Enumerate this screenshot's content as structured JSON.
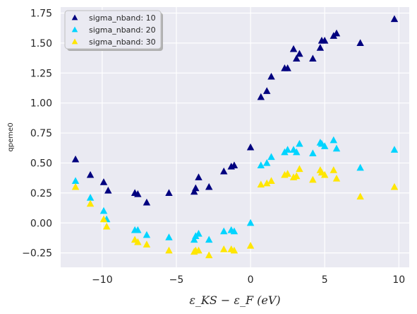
{
  "chart_data": {
    "type": "scatter",
    "marker": "triangle-up",
    "xlabel": "ε_KS − ε_F (eV)",
    "ylabel": "qpeme0",
    "xlim": [
      -12.8,
      10.7
    ],
    "ylim": [
      -0.37,
      1.8
    ],
    "xticks": [
      -10,
      -5,
      0,
      5,
      10
    ],
    "xtick_labels": [
      "−10",
      "−5",
      "0",
      "5",
      "10"
    ],
    "yticks": [
      -0.25,
      0,
      0.25,
      0.5,
      0.75,
      1.0,
      1.25,
      1.5,
      1.75
    ],
    "ytick_labels": [
      "−0.25",
      "0.00",
      "0.25",
      "0.50",
      "0.75",
      "1.00",
      "1.25",
      "1.50",
      "1.75"
    ],
    "grid": true,
    "background": "#eaeaf2",
    "legend_position": "top-left",
    "series": [
      {
        "name": "sigma_nband: 10",
        "color": "#00007f",
        "points": [
          [
            -11.8,
            0.53
          ],
          [
            -10.8,
            0.4
          ],
          [
            -9.9,
            0.34
          ],
          [
            -9.6,
            0.27
          ],
          [
            -7.8,
            0.25
          ],
          [
            -7.6,
            0.24
          ],
          [
            -7.0,
            0.17
          ],
          [
            -5.5,
            0.25
          ],
          [
            -3.8,
            0.26
          ],
          [
            -3.7,
            0.29
          ],
          [
            -3.5,
            0.38
          ],
          [
            -2.8,
            0.3
          ],
          [
            -1.8,
            0.43
          ],
          [
            -1.3,
            0.47
          ],
          [
            -1.1,
            0.48
          ],
          [
            0.0,
            0.63
          ],
          [
            0.7,
            1.05
          ],
          [
            1.1,
            1.1
          ],
          [
            1.4,
            1.22
          ],
          [
            2.3,
            1.29
          ],
          [
            2.5,
            1.29
          ],
          [
            2.9,
            1.45
          ],
          [
            3.1,
            1.37
          ],
          [
            3.3,
            1.41
          ],
          [
            4.2,
            1.37
          ],
          [
            4.7,
            1.46
          ],
          [
            4.8,
            1.52
          ],
          [
            5.0,
            1.52
          ],
          [
            5.6,
            1.56
          ],
          [
            5.8,
            1.58
          ],
          [
            7.4,
            1.5
          ],
          [
            9.7,
            1.7
          ]
        ]
      },
      {
        "name": "sigma_nband: 20",
        "color": "#00d4ff",
        "points": [
          [
            -11.8,
            0.35
          ],
          [
            -10.8,
            0.21
          ],
          [
            -9.9,
            0.1
          ],
          [
            -9.7,
            0.03
          ],
          [
            -7.8,
            -0.06
          ],
          [
            -7.6,
            -0.06
          ],
          [
            -7.0,
            -0.1
          ],
          [
            -5.5,
            -0.12
          ],
          [
            -3.8,
            -0.14
          ],
          [
            -3.7,
            -0.11
          ],
          [
            -3.5,
            -0.09
          ],
          [
            -2.8,
            -0.14
          ],
          [
            -1.8,
            -0.07
          ],
          [
            -1.3,
            -0.06
          ],
          [
            -1.1,
            -0.07
          ],
          [
            0.0,
            0.0
          ],
          [
            0.7,
            0.48
          ],
          [
            1.1,
            0.5
          ],
          [
            1.4,
            0.55
          ],
          [
            2.3,
            0.59
          ],
          [
            2.5,
            0.61
          ],
          [
            2.9,
            0.61
          ],
          [
            3.1,
            0.59
          ],
          [
            3.3,
            0.66
          ],
          [
            4.2,
            0.58
          ],
          [
            4.7,
            0.67
          ],
          [
            4.8,
            0.66
          ],
          [
            5.0,
            0.64
          ],
          [
            5.6,
            0.69
          ],
          [
            5.8,
            0.62
          ],
          [
            7.4,
            0.46
          ],
          [
            9.7,
            0.61
          ]
        ]
      },
      {
        "name": "sigma_nband: 30",
        "color": "#ffe600",
        "points": [
          [
            -11.8,
            0.3
          ],
          [
            -10.8,
            0.16
          ],
          [
            -9.9,
            0.03
          ],
          [
            -9.7,
            -0.03
          ],
          [
            -7.8,
            -0.14
          ],
          [
            -7.6,
            -0.16
          ],
          [
            -7.0,
            -0.18
          ],
          [
            -5.5,
            -0.23
          ],
          [
            -3.8,
            -0.24
          ],
          [
            -3.7,
            -0.23
          ],
          [
            -3.5,
            -0.23
          ],
          [
            -2.8,
            -0.27
          ],
          [
            -1.8,
            -0.22
          ],
          [
            -1.3,
            -0.22
          ],
          [
            -1.1,
            -0.23
          ],
          [
            0.0,
            -0.19
          ],
          [
            0.7,
            0.32
          ],
          [
            1.1,
            0.33
          ],
          [
            1.4,
            0.35
          ],
          [
            2.3,
            0.4
          ],
          [
            2.5,
            0.41
          ],
          [
            2.9,
            0.38
          ],
          [
            3.1,
            0.39
          ],
          [
            3.3,
            0.45
          ],
          [
            4.2,
            0.36
          ],
          [
            4.7,
            0.44
          ],
          [
            4.8,
            0.42
          ],
          [
            5.0,
            0.4
          ],
          [
            5.6,
            0.44
          ],
          [
            5.8,
            0.37
          ],
          [
            7.4,
            0.22
          ],
          [
            9.7,
            0.3
          ]
        ]
      }
    ]
  }
}
